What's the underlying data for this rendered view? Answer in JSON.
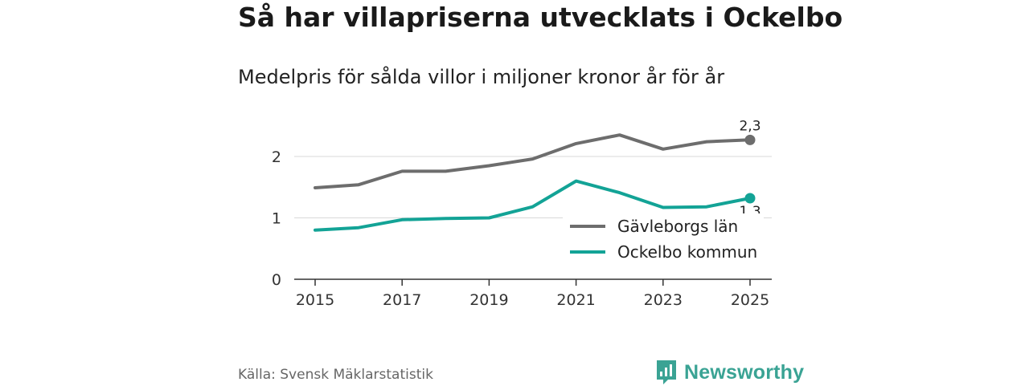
{
  "title": "Så har villapriserna utvecklats i Ockelbo",
  "subtitle": "Medelpris för sålda villor i miljoner kronor år för år",
  "source": "Källa: Svensk Mäklarstatistik",
  "brand": {
    "name": "Newsworthy",
    "icon": "newsworthy-logo-icon"
  },
  "colors": {
    "county": "#6d6d6d",
    "municipality": "#13a396",
    "brand": "#3aa394"
  },
  "chart_data": {
    "type": "line",
    "title": "Så har villapriserna utvecklats i Ockelbo",
    "subtitle": "Medelpris för sålda villor i miljoner kronor år för år",
    "xlabel": "",
    "ylabel": "",
    "x": [
      2015,
      2016,
      2017,
      2018,
      2019,
      2020,
      2021,
      2022,
      2023,
      2024,
      2025
    ],
    "xticks": [
      "2015",
      "2017",
      "2019",
      "2021",
      "2023",
      "2025"
    ],
    "yticks": [
      "0",
      "1",
      "2"
    ],
    "xlim": [
      2015,
      2025
    ],
    "ylim": [
      0,
      2.5
    ],
    "grid": "horizontal",
    "legend": "bottom-right",
    "series": [
      {
        "name": "Gävleborgs län",
        "color": "#6d6d6d",
        "values": [
          1.49,
          1.54,
          1.76,
          1.76,
          1.85,
          1.96,
          2.21,
          2.35,
          2.12,
          2.24,
          2.27
        ],
        "end_label": "2,3"
      },
      {
        "name": "Ockelbo kommun",
        "color": "#13a396",
        "values": [
          0.8,
          0.84,
          0.97,
          0.99,
          1.0,
          1.18,
          1.6,
          1.41,
          1.17,
          1.18,
          1.32
        ],
        "end_label": "1,3"
      }
    ]
  }
}
